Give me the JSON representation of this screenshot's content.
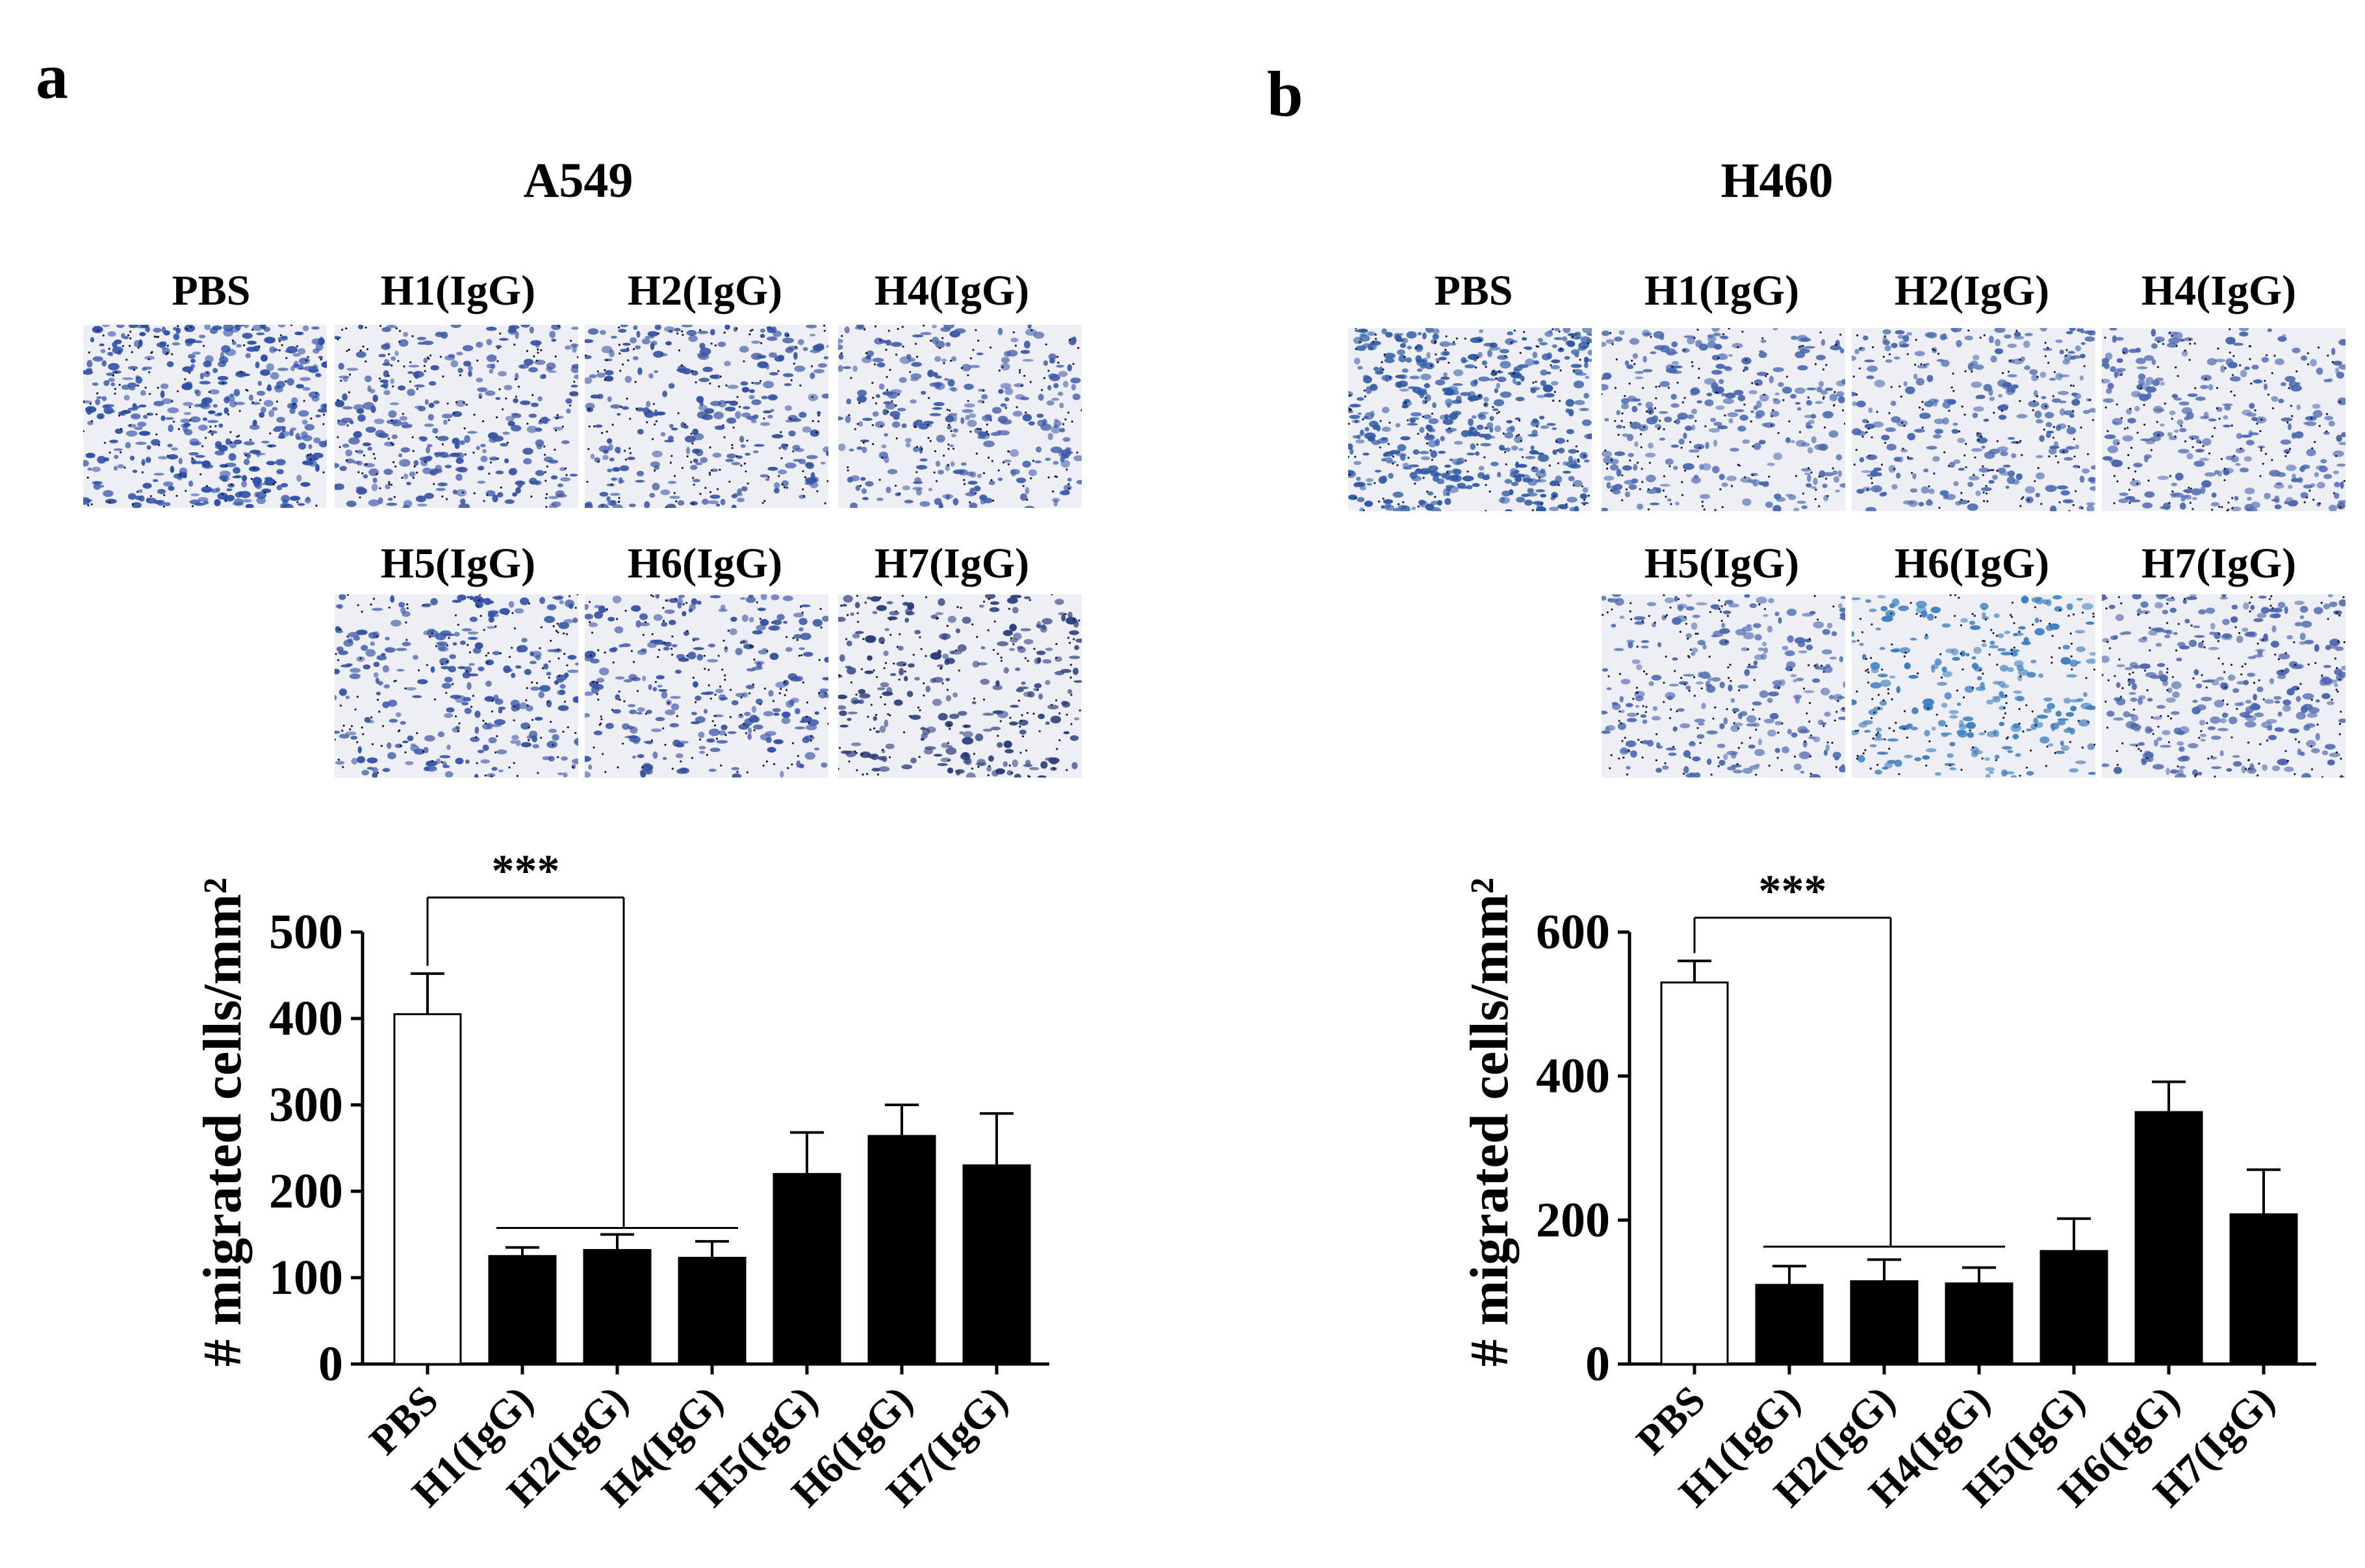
{
  "figure": {
    "panels": [
      {
        "letter": "a",
        "cell_line": "A549",
        "micrograph_labels": [
          "PBS",
          "H1(IgG)",
          "H2(IgG)",
          "H4(IgG)",
          "H5(IgG)",
          "H6(IgG)",
          "H7(IgG)"
        ],
        "micrograph_stain_colors": [
          "#2d4fa8",
          "#3a56a6",
          "#3452a3",
          "#3f5caa",
          "#3553a6",
          "#3552a5",
          "#2b3f7e"
        ]
      },
      {
        "letter": "b",
        "cell_line": "H460",
        "micrograph_labels": [
          "PBS",
          "H1(IgG)",
          "H2(IgG)",
          "H4(IgG)",
          "H5(IgG)",
          "H6(IgG)",
          "H7(IgG)"
        ],
        "micrograph_stain_colors": [
          "#2f5aa6",
          "#4a68b0",
          "#4466ae",
          "#4a67b0",
          "#4b6ab2",
          "#3d7fc0",
          "#4a66ad"
        ]
      }
    ]
  },
  "chart_data": [
    {
      "type": "bar",
      "title": "",
      "ylabel": "# migrated cells/mm²",
      "categories": [
        "PBS",
        "H1(IgG)",
        "H2(IgG)",
        "H4(IgG)",
        "H5(IgG)",
        "H6(IgG)",
        "H7(IgG)"
      ],
      "values": [
        405,
        125,
        132,
        123,
        220,
        264,
        230
      ],
      "errors": [
        47,
        10,
        18,
        19,
        48,
        36,
        60
      ],
      "bar_fills": [
        "#ffffff",
        "#000000",
        "#000000",
        "#000000",
        "#000000",
        "#000000",
        "#000000"
      ],
      "ylim": [
        0,
        500
      ],
      "yticks": [
        0,
        100,
        200,
        300,
        400,
        500
      ],
      "significance": {
        "label": "***",
        "from": "PBS",
        "to": [
          "H1(IgG)",
          "H2(IgG)",
          "H4(IgG)"
        ],
        "level": 540
      },
      "grid": false,
      "legend": "none"
    },
    {
      "type": "bar",
      "title": "",
      "ylabel": "# migrated cells/mm²",
      "categories": [
        "PBS",
        "H1(IgG)",
        "H2(IgG)",
        "H4(IgG)",
        "H5(IgG)",
        "H6(IgG)",
        "H7(IgG)"
      ],
      "values": [
        530,
        110,
        115,
        112,
        157,
        350,
        208
      ],
      "errors": [
        30,
        26,
        30,
        22,
        45,
        42,
        62
      ],
      "bar_fills": [
        "#ffffff",
        "#000000",
        "#000000",
        "#000000",
        "#000000",
        "#000000",
        "#000000"
      ],
      "ylim": [
        0,
        600
      ],
      "yticks": [
        0,
        200,
        400,
        600
      ],
      "significance": {
        "label": "***",
        "from": "PBS",
        "to": [
          "H1(IgG)",
          "H2(IgG)",
          "H4(IgG)"
        ],
        "level": 620
      },
      "grid": false,
      "legend": "none"
    }
  ]
}
